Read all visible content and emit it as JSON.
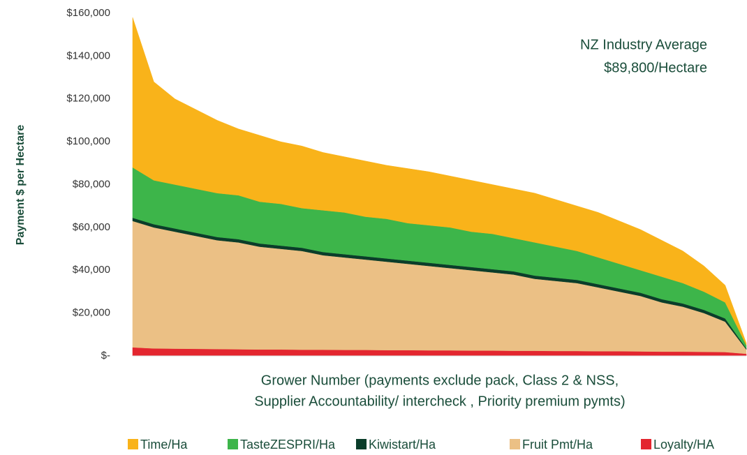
{
  "chart_data": {
    "type": "stacked_area",
    "ylabel": "Payment $ per Hectare",
    "xlabel": [
      "Grower Number (payments exclude pack, Class 2 & NSS,",
      "Supplier Accountability/ intercheck , Priority premium pymts)"
    ],
    "annotation": [
      "NZ Industry Average",
      "$89,800/Hectare"
    ],
    "categories": [
      null,
      null,
      null,
      null,
      null,
      null,
      null,
      null,
      null,
      null,
      null,
      null,
      null,
      null,
      null,
      null,
      null,
      null,
      null,
      null,
      null,
      null,
      null,
      null,
      null,
      null,
      null,
      null,
      null,
      null
    ],
    "ylim": [
      0,
      160000
    ],
    "yticks": [
      {
        "value": 0,
        "label": "$-"
      },
      {
        "value": 20000,
        "label": "$20,000"
      },
      {
        "value": 40000,
        "label": "$40,000"
      },
      {
        "value": 60000,
        "label": "$60,000"
      },
      {
        "value": 80000,
        "label": "$80,000"
      },
      {
        "value": 100000,
        "label": "$100,000"
      },
      {
        "value": 120000,
        "label": "$120,000"
      },
      {
        "value": 140000,
        "label": "$140,000"
      },
      {
        "value": 160000,
        "label": "$160,000"
      }
    ],
    "legend": "bottom",
    "series": [
      {
        "name": "Time/Ha",
        "color": "#f9b31a",
        "values": [
          70000,
          46000,
          40000,
          37000,
          34000,
          31000,
          31000,
          29000,
          29000,
          27000,
          26000,
          26000,
          25000,
          25500,
          25000,
          24000,
          24000,
          23000,
          23000,
          23000,
          22000,
          21000,
          21000,
          20000,
          19000,
          17000,
          15000,
          12000,
          8000,
          1000
        ]
      },
      {
        "name": "TasteZESPRI/Ha",
        "color": "#3db54a",
        "values": [
          23500,
          20500,
          20500,
          20500,
          20500,
          20500,
          19500,
          19500,
          18500,
          19500,
          19500,
          18500,
          18500,
          17500,
          17500,
          17500,
          16500,
          16500,
          15500,
          15500,
          14500,
          13500,
          12500,
          11500,
          10500,
          10500,
          9500,
          8500,
          7500,
          1500
        ]
      },
      {
        "name": "Kiwistart/Ha",
        "color": "#0b3d2a",
        "values": [
          1500,
          1500,
          1500,
          1500,
          1500,
          1500,
          1500,
          1500,
          1500,
          1500,
          1500,
          1500,
          1500,
          1500,
          1500,
          1500,
          1500,
          1500,
          1500,
          1500,
          1500,
          1500,
          1500,
          1500,
          1500,
          1500,
          1500,
          1500,
          1500,
          500
        ]
      },
      {
        "name": "Fruit Pmt/Ha",
        "color": "#ebc085",
        "values": [
          59000,
          56500,
          54600,
          52700,
          50800,
          49900,
          48000,
          47000,
          46100,
          44100,
          43200,
          42200,
          41300,
          40300,
          39400,
          38400,
          37500,
          36500,
          35600,
          33600,
          32700,
          31700,
          29800,
          27800,
          25900,
          23000,
          21000,
          18100,
          14200,
          2000
        ]
      },
      {
        "name": "Loyalty/HA",
        "color": "#e3262f",
        "values": [
          4000,
          3500,
          3400,
          3300,
          3200,
          3100,
          3000,
          3000,
          2900,
          2900,
          2800,
          2800,
          2700,
          2700,
          2600,
          2600,
          2500,
          2500,
          2400,
          2400,
          2300,
          2300,
          2200,
          2200,
          2100,
          2000,
          2000,
          1900,
          1800,
          1000
        ]
      }
    ]
  }
}
